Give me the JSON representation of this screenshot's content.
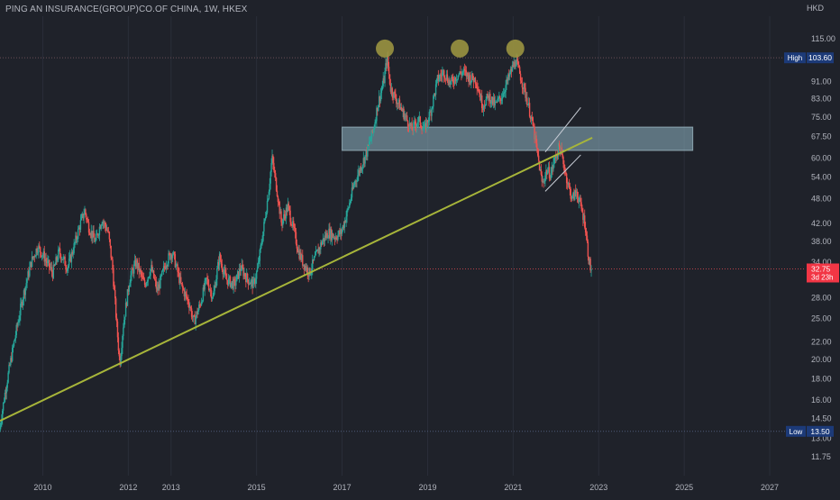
{
  "header": {
    "symbol_title": "PING AN INSURANCE(GROUP)CO.OF CHINA, 1W, HKEX",
    "currency": "HKD"
  },
  "colors": {
    "background": "#1f222a",
    "up_candle": "#26a69a",
    "down_candle": "#ef5350",
    "trendline": "#a7b53a",
    "resistance_zone": "#8fb7c4",
    "top_marker": "#9a9440",
    "price_tag": "#f23645",
    "high_low_tag": "#1c3a78",
    "channel_lines": "#c8cdd6"
  },
  "chart_data": {
    "type": "candlestick",
    "scale": "log",
    "xlim": [
      2009.0,
      2027.8
    ],
    "ylim": [
      10.6,
      130
    ],
    "x_ticks": [
      "2010",
      "2012",
      "2013",
      "2015",
      "2017",
      "2019",
      "2021",
      "2023",
      "2025",
      "2027"
    ],
    "x_tick_values": [
      2010,
      2012,
      2013,
      2015,
      2017,
      2019,
      2021,
      2023,
      2025,
      2027
    ],
    "y_ticks": [
      "115.00",
      "103.60",
      "91.00",
      "83.00",
      "75.00",
      "67.50",
      "60.00",
      "54.00",
      "48.00",
      "42.00",
      "38.00",
      "34.00",
      "28.00",
      "25.00",
      "22.00",
      "20.00",
      "18.00",
      "16.00",
      "14.50",
      "13.00",
      "11.75"
    ],
    "y_tick_values": [
      115,
      103.6,
      91,
      83,
      75,
      67.5,
      60,
      54,
      48,
      42,
      38,
      34,
      28,
      25,
      22,
      20,
      18,
      16,
      14.5,
      13,
      11.75
    ],
    "high": {
      "label": "High",
      "value": "103.60"
    },
    "low": {
      "label": "Low",
      "value": "13.50"
    },
    "last_price": {
      "value": "32.75",
      "countdown": "3d 23h"
    },
    "price_path": [
      [
        2009.0,
        13.5
      ],
      [
        2009.15,
        17
      ],
      [
        2009.35,
        22
      ],
      [
        2009.55,
        28
      ],
      [
        2009.75,
        34
      ],
      [
        2009.9,
        37
      ],
      [
        2010.05,
        35
      ],
      [
        2010.25,
        32
      ],
      [
        2010.4,
        36
      ],
      [
        2010.6,
        33
      ],
      [
        2010.75,
        37
      ],
      [
        2010.9,
        42
      ],
      [
        2011.0,
        45
      ],
      [
        2011.1,
        41
      ],
      [
        2011.25,
        38
      ],
      [
        2011.4,
        43
      ],
      [
        2011.55,
        40
      ],
      [
        2011.65,
        33
      ],
      [
        2011.75,
        24
      ],
      [
        2011.82,
        19.5
      ],
      [
        2011.9,
        24
      ],
      [
        2012.05,
        31
      ],
      [
        2012.2,
        34
      ],
      [
        2012.4,
        30
      ],
      [
        2012.55,
        33
      ],
      [
        2012.7,
        29
      ],
      [
        2012.9,
        34
      ],
      [
        2013.05,
        36
      ],
      [
        2013.25,
        30
      ],
      [
        2013.45,
        27
      ],
      [
        2013.55,
        24.5
      ],
      [
        2013.7,
        27
      ],
      [
        2013.85,
        31
      ],
      [
        2014.0,
        28
      ],
      [
        2014.15,
        35
      ],
      [
        2014.3,
        31
      ],
      [
        2014.5,
        30
      ],
      [
        2014.65,
        33
      ],
      [
        2014.8,
        31
      ],
      [
        2014.95,
        30
      ],
      [
        2015.05,
        33
      ],
      [
        2015.2,
        42
      ],
      [
        2015.3,
        50
      ],
      [
        2015.38,
        60
      ],
      [
        2015.5,
        50
      ],
      [
        2015.6,
        42
      ],
      [
        2015.75,
        46
      ],
      [
        2015.9,
        40
      ],
      [
        2016.0,
        36
      ],
      [
        2016.1,
        34
      ],
      [
        2016.25,
        32
      ],
      [
        2016.4,
        35
      ],
      [
        2016.55,
        38
      ],
      [
        2016.7,
        40
      ],
      [
        2016.85,
        39
      ],
      [
        2017.0,
        40
      ],
      [
        2017.15,
        45
      ],
      [
        2017.3,
        52
      ],
      [
        2017.45,
        57
      ],
      [
        2017.6,
        62
      ],
      [
        2017.75,
        70
      ],
      [
        2017.85,
        80
      ],
      [
        2018.0,
        92
      ],
      [
        2018.07,
        104
      ],
      [
        2018.15,
        88
      ],
      [
        2018.3,
        82
      ],
      [
        2018.5,
        75
      ],
      [
        2018.65,
        70
      ],
      [
        2018.8,
        74
      ],
      [
        2018.95,
        70
      ],
      [
        2019.1,
        78
      ],
      [
        2019.25,
        92
      ],
      [
        2019.4,
        96
      ],
      [
        2019.55,
        90
      ],
      [
        2019.7,
        94
      ],
      [
        2019.85,
        96
      ],
      [
        2020.0,
        93
      ],
      [
        2020.15,
        92
      ],
      [
        2020.3,
        80
      ],
      [
        2020.45,
        84
      ],
      [
        2020.6,
        80
      ],
      [
        2020.75,
        84
      ],
      [
        2020.9,
        92
      ],
      [
        2021.0,
        98
      ],
      [
        2021.08,
        102
      ],
      [
        2021.2,
        93
      ],
      [
        2021.35,
        82
      ],
      [
        2021.5,
        70
      ],
      [
        2021.6,
        60
      ],
      [
        2021.7,
        52
      ],
      [
        2021.8,
        56
      ],
      [
        2021.9,
        55
      ],
      [
        2022.0,
        60
      ],
      [
        2022.1,
        64
      ],
      [
        2022.2,
        58
      ],
      [
        2022.3,
        52
      ],
      [
        2022.4,
        48
      ],
      [
        2022.5,
        50
      ],
      [
        2022.6,
        46
      ],
      [
        2022.7,
        42
      ],
      [
        2022.78,
        35
      ],
      [
        2022.83,
        32.75
      ]
    ],
    "annotations": {
      "support_trendline": {
        "x1": 2009.0,
        "y1": 14.3,
        "x2": 2022.85,
        "y2": 67.0
      },
      "resistance_zone": {
        "x1": 2017.0,
        "x2": 2025.2,
        "y1": 62.5,
        "y2": 71.0
      },
      "top_markers": [
        {
          "x": 2018.0,
          "y": 109
        },
        {
          "x": 2019.75,
          "y": 109
        },
        {
          "x": 2021.05,
          "y": 109
        }
      ],
      "channel_upper": {
        "x1": 2021.75,
        "y1": 62.0,
        "x2": 2022.58,
        "y2": 79.0
      },
      "channel_lower": {
        "x1": 2021.75,
        "y1": 50.0,
        "x2": 2022.58,
        "y2": 61.0
      }
    }
  }
}
